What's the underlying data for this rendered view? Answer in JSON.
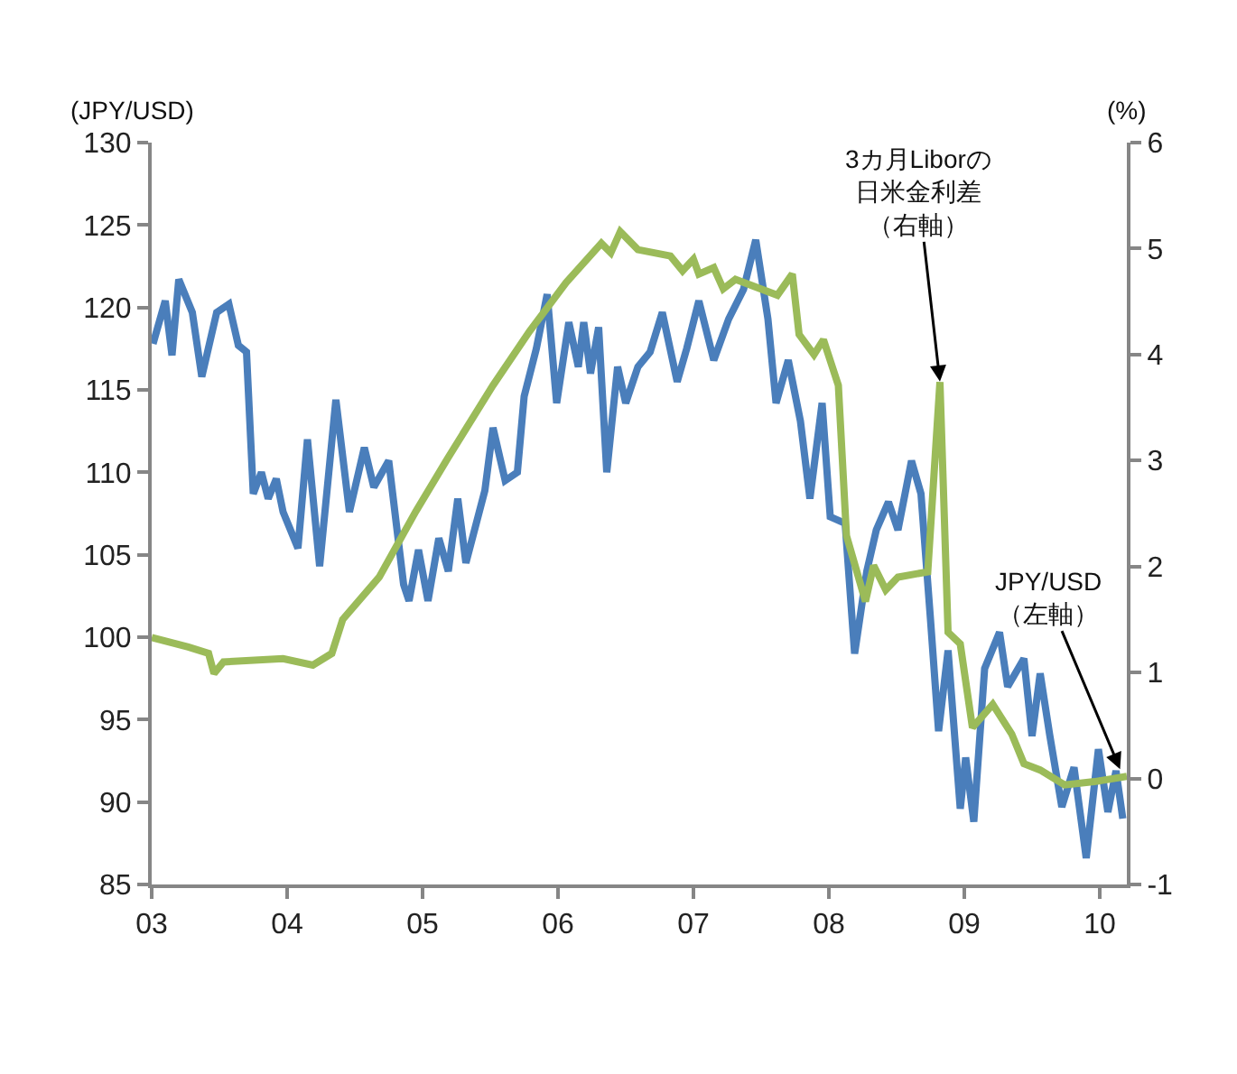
{
  "chart_data": {
    "type": "line",
    "ylabel": "(JPY/USD)",
    "y2label": "(%)",
    "xlim": [
      2003,
      2010.2
    ],
    "xticks": [
      {
        "value": 2003,
        "label": "03"
      },
      {
        "value": 2004,
        "label": "04"
      },
      {
        "value": 2005,
        "label": "05"
      },
      {
        "value": 2006,
        "label": "06"
      },
      {
        "value": 2007,
        "label": "07"
      },
      {
        "value": 2008,
        "label": "08"
      },
      {
        "value": 2009,
        "label": "09"
      },
      {
        "value": 2010,
        "label": "10"
      }
    ],
    "ylim": [
      85,
      130
    ],
    "yticks": [
      85,
      90,
      95,
      100,
      105,
      110,
      115,
      120,
      125,
      130
    ],
    "y2lim": [
      -1,
      6
    ],
    "y2ticks": [
      -1,
      0,
      1,
      2,
      3,
      4,
      5,
      6
    ],
    "marker": "none",
    "line_style": "solid",
    "series": [
      {
        "color": "#4a7ebb",
        "x": [
          2003.01,
          2003.1,
          2003.15,
          2003.2,
          2003.3,
          2003.37,
          2003.48,
          2003.57,
          2003.64,
          2003.7,
          2003.75,
          2003.81,
          2003.86,
          2003.92,
          2003.97,
          2004.08,
          2004.15,
          2004.24,
          2004.36,
          2004.46,
          2004.57,
          2004.64,
          2004.75,
          2004.86,
          2004.9,
          2004.97,
          2005.04,
          2005.12,
          2005.19,
          2005.26,
          2005.32,
          2005.46,
          2005.52,
          2005.61,
          2005.7,
          2005.75,
          2005.84,
          2005.92,
          2005.99,
          2006.08,
          2006.15,
          2006.19,
          2006.24,
          2006.3,
          2006.36,
          2006.44,
          2006.5,
          2006.59,
          2006.68,
          2006.77,
          2006.88,
          2006.95,
          2007.04,
          2007.15,
          2007.26,
          2007.37,
          2007.46,
          2007.55,
          2007.61,
          2007.7,
          2007.79,
          2007.86,
          2007.95,
          2008.01,
          2008.12,
          2008.19,
          2008.28,
          2008.35,
          2008.44,
          2008.51,
          2008.61,
          2008.68,
          2008.75,
          2008.81,
          2008.88,
          2008.97,
          2009.01,
          2009.07,
          2009.15,
          2009.26,
          2009.32,
          2009.44,
          2009.5,
          2009.56,
          2009.63,
          2009.72,
          2009.81,
          2009.9,
          2009.99,
          2010.06,
          2010.12,
          2010.17
        ],
        "values": [
          117.8,
          120.4,
          117.1,
          121.7,
          119.7,
          115.8,
          119.7,
          120.2,
          117.7,
          117.3,
          108.7,
          110,
          108.4,
          109.6,
          107.6,
          105.4,
          112,
          104.3,
          114.4,
          107.6,
          111.5,
          109.1,
          110.7,
          103.2,
          102.2,
          105.3,
          102.2,
          106,
          104,
          108.4,
          104.5,
          108.9,
          112.7,
          109.5,
          110,
          114.6,
          117.5,
          120.8,
          114.2,
          119.1,
          116.4,
          119.1,
          116,
          118.8,
          110,
          116.4,
          114.2,
          116.4,
          117.3,
          119.7,
          115.5,
          117.5,
          120.4,
          116.8,
          119.3,
          121.1,
          124.1,
          119.3,
          114.2,
          116.8,
          113.1,
          108.4,
          114.2,
          107.3,
          106.9,
          99,
          104,
          106.5,
          108.2,
          106.5,
          110.7,
          108.7,
          101.1,
          94.3,
          99.2,
          89.6,
          92.7,
          88.8,
          98.1,
          100.3,
          97,
          98.7,
          94,
          97.8,
          94.1,
          89.7,
          92.1,
          86.6,
          93.2,
          89.4,
          91.9,
          89
        ]
      },
      {
        "color": "#9bbb59",
        "axis": "y2",
        "x": [
          2003.0,
          2003.27,
          2003.42,
          2003.46,
          2003.53,
          2003.97,
          2004.19,
          2004.33,
          2004.41,
          2004.68,
          2004.95,
          2005.19,
          2005.52,
          2005.79,
          2006.06,
          2006.32,
          2006.39,
          2006.46,
          2006.59,
          2006.83,
          2006.92,
          2007.0,
          2007.04,
          2007.15,
          2007.22,
          2007.31,
          2007.62,
          2007.73,
          2007.78,
          2007.89,
          2007.96,
          2008.07,
          2008.13,
          2008.27,
          2008.33,
          2008.42,
          2008.51,
          2008.73,
          2008.82,
          2008.88,
          2008.97,
          2009.06,
          2009.21,
          2009.35,
          2009.44,
          2009.56,
          2009.74,
          2009.96,
          2010.2
        ],
        "values": [
          1.33,
          1.24,
          1.18,
          0.99,
          1.1,
          1.13,
          1.07,
          1.18,
          1.5,
          1.9,
          2.52,
          3.03,
          3.71,
          4.22,
          4.68,
          5.05,
          4.96,
          5.16,
          4.99,
          4.93,
          4.79,
          4.9,
          4.76,
          4.82,
          4.62,
          4.71,
          4.56,
          4.76,
          4.19,
          4.0,
          4.14,
          3.71,
          2.29,
          1.67,
          2.01,
          1.78,
          1.9,
          1.95,
          3.74,
          1.38,
          1.27,
          0.48,
          0.7,
          0.42,
          0.14,
          0.08,
          -0.06,
          -0.03,
          0.02
        ]
      }
    ],
    "annotations": [
      {
        "text": "3カ月Liborの日米金利差（右軸）",
        "x": 2008.82,
        "y": 115.5
      },
      {
        "text": "JPY/USD（左軸）",
        "x": 2010.15,
        "y": 92
      }
    ]
  }
}
